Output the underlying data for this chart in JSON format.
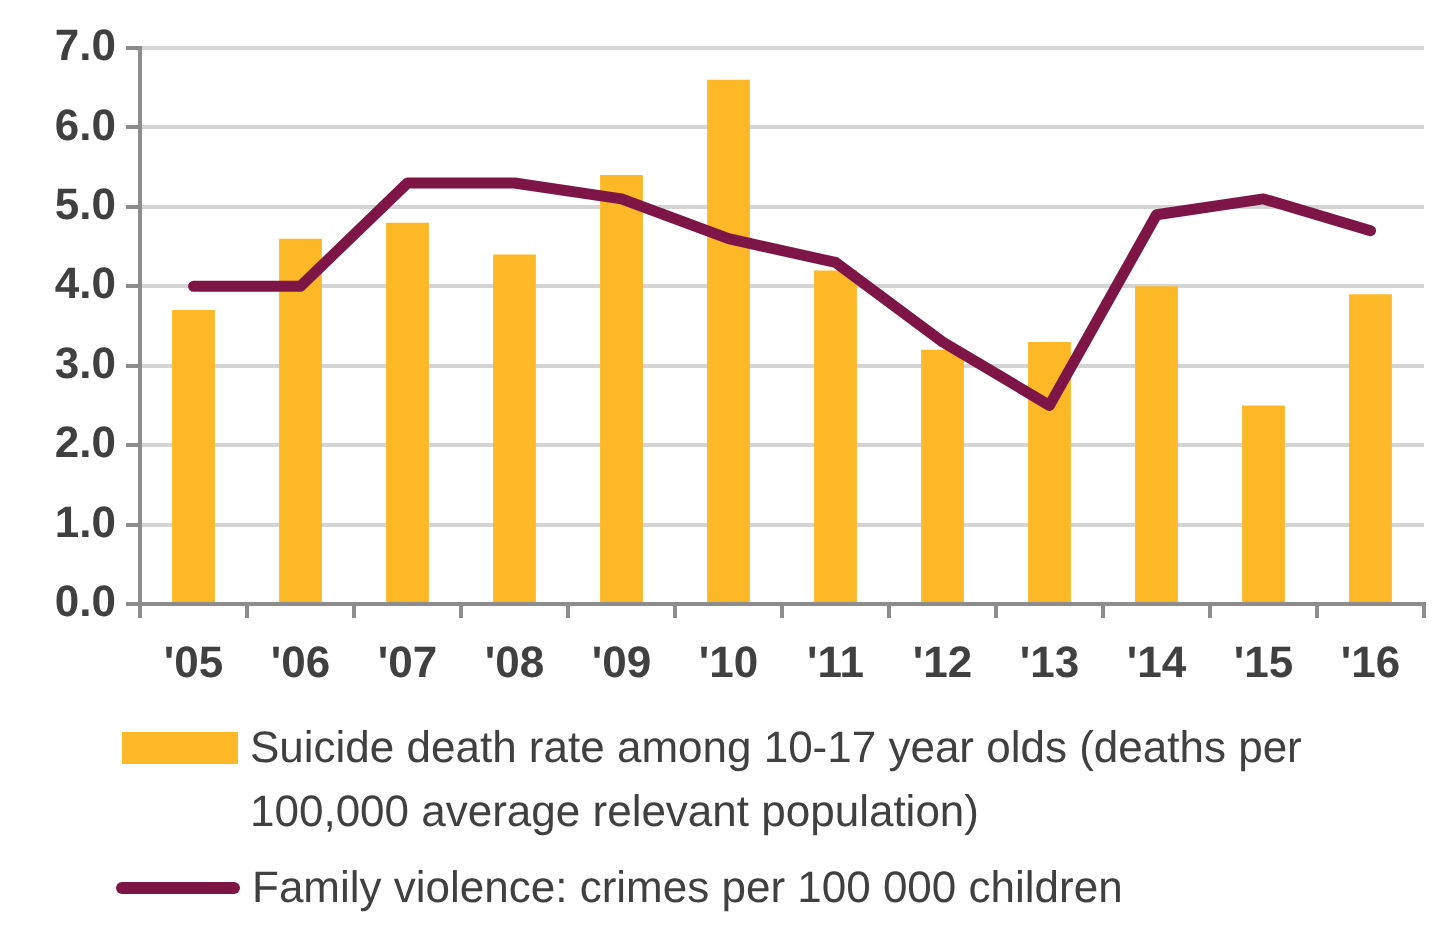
{
  "chart_data": {
    "type": "bar",
    "categories": [
      "'05",
      "'06",
      "'07",
      "'08",
      "'09",
      "'10",
      "'11",
      "'12",
      "'13",
      "'14",
      "'15",
      "'16"
    ],
    "series": [
      {
        "name": "Suicide death rate among 10-17 year olds (deaths per 100,000 average relevant population)",
        "color": "#fdb827",
        "values": [
          3.7,
          4.6,
          4.8,
          4.4,
          5.4,
          6.6,
          4.2,
          3.2,
          3.3,
          4.0,
          2.5,
          3.9
        ]
      },
      {
        "name": "Family violence: crimes per 100 000 children",
        "type": "line",
        "color": "#7d1646",
        "values": [
          4.0,
          4.0,
          5.3,
          5.3,
          5.1,
          4.6,
          4.3,
          3.3,
          2.5,
          4.9,
          5.1,
          4.7
        ]
      }
    ],
    "ylim": [
      0,
      7
    ],
    "yticks": [
      {
        "value": 0,
        "label": "0.0"
      },
      {
        "value": 1,
        "label": "1.0"
      },
      {
        "value": 2,
        "label": "2.0"
      },
      {
        "value": 3,
        "label": "3.0"
      },
      {
        "value": 4,
        "label": "4.0"
      },
      {
        "value": 5,
        "label": "5.0"
      },
      {
        "value": 6,
        "label": "6.0"
      },
      {
        "value": 7,
        "label": "7.0"
      }
    ],
    "grid": "y",
    "legend": "bottom"
  }
}
